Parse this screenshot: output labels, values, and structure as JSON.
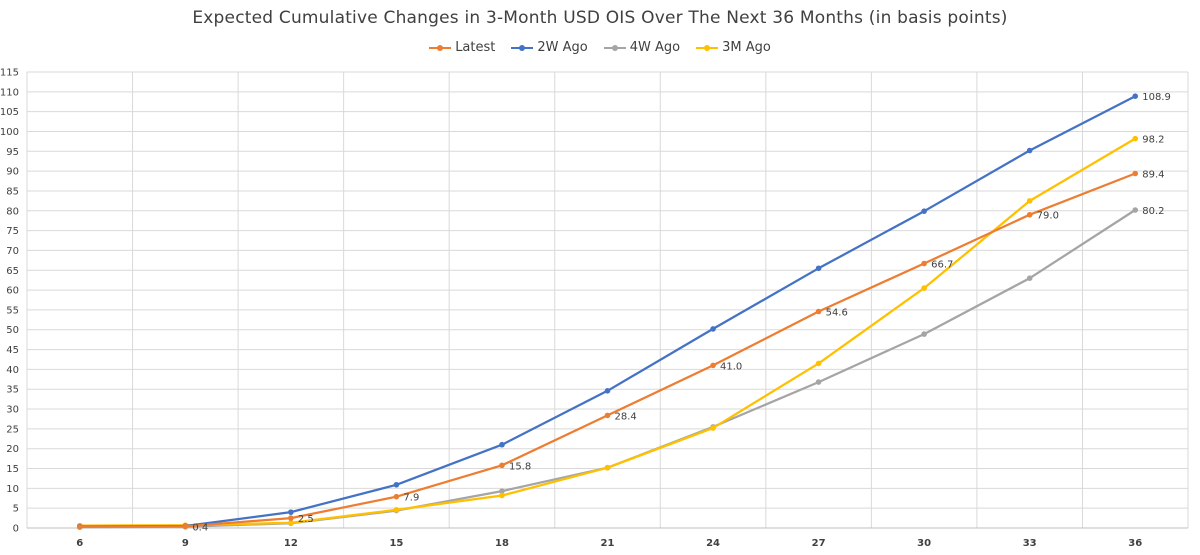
{
  "chart_data": {
    "type": "line",
    "title": "Expected Cumulative Changes in 3-Month USD OIS Over The Next 36 Months (in basis points)",
    "xlabel": "",
    "ylabel": "",
    "categories": [
      "6",
      "9",
      "12",
      "15",
      "18",
      "21",
      "24",
      "27",
      "30",
      "33",
      "36"
    ],
    "ylim": [
      0,
      115
    ],
    "ytick_step": 5,
    "grid": true,
    "legend_position": "top",
    "series": [
      {
        "name": "Latest",
        "color": "#ED7D31",
        "values": [
          0.3,
          0.4,
          2.5,
          7.9,
          15.8,
          28.4,
          41.0,
          54.6,
          66.7,
          79.0,
          89.4
        ],
        "data_labels": [
          "",
          "0.4",
          "2.5",
          "7.9",
          "15.8",
          "28.4",
          "41.0",
          "54.6",
          "66.7",
          "79.0",
          "89.4"
        ]
      },
      {
        "name": "2W Ago",
        "color": "#4472C4",
        "values": [
          0.4,
          0.5,
          4.0,
          10.9,
          21.0,
          34.6,
          50.2,
          65.5,
          79.9,
          95.2,
          108.9
        ],
        "data_labels": [
          "",
          "",
          "",
          "",
          "",
          "",
          "",
          "",
          "",
          "",
          "108.9"
        ]
      },
      {
        "name": "4W Ago",
        "color": "#A5A5A5",
        "values": [
          0.2,
          0.3,
          1.2,
          4.4,
          9.3,
          15.2,
          25.5,
          36.8,
          48.9,
          63.0,
          80.2
        ],
        "data_labels": [
          "",
          "",
          "",
          "",
          "",
          "",
          "",
          "",
          "",
          "",
          "80.2"
        ]
      },
      {
        "name": "3M Ago",
        "color": "#FFC000",
        "values": [
          0.6,
          0.7,
          1.3,
          4.6,
          8.2,
          15.2,
          25.2,
          41.5,
          60.5,
          82.5,
          98.2
        ],
        "data_labels": [
          "",
          "",
          "",
          "",
          "",
          "",
          "",
          "",
          "",
          "",
          "98.2"
        ]
      }
    ]
  }
}
